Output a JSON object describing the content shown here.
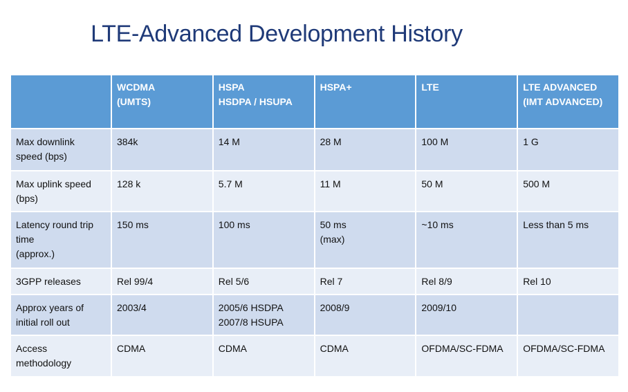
{
  "title": "LTE-Advanced Development History",
  "table": {
    "headers": [
      "",
      "WCDMA\n(UMTS)",
      "HSPA\nHSDPA / HSUPA",
      "HSPA+",
      "LTE",
      "LTE ADVANCED\n(IMT ADVANCED)"
    ],
    "rows": [
      [
        "Max downlink\nspeed (bps)",
        "384k",
        "14 M",
        "28 M",
        "100 M",
        "1 G"
      ],
      [
        "Max uplink speed\n(bps)",
        "128 k",
        "5.7 M",
        "11 M",
        "50 M",
        "500 M"
      ],
      [
        "Latency round trip\ntime\n(approx.)",
        "150 ms",
        "100 ms",
        "50 ms\n(max)",
        "~10 ms",
        "Less than 5 ms"
      ],
      [
        "3GPP releases",
        "Rel 99/4",
        "Rel 5/6",
        "Rel 7",
        "Rel 8/9",
        "Rel 10"
      ],
      [
        "Approx years of\ninitial roll out",
        "2003/4",
        "2005/6 HSDPA\n2007/8 HSUPA",
        "2008/9",
        "2009/10",
        ""
      ],
      [
        "Access\nmethodology",
        "CDMA",
        "CDMA",
        "CDMA",
        "OFDMA/SC-FDMA",
        "OFDMA/SC-FDMA"
      ]
    ]
  },
  "colors": {
    "title": "#1f3a78",
    "header_bg": "#5b9bd5",
    "row_dark": "#cfdbee",
    "row_light": "#e8eef7"
  }
}
